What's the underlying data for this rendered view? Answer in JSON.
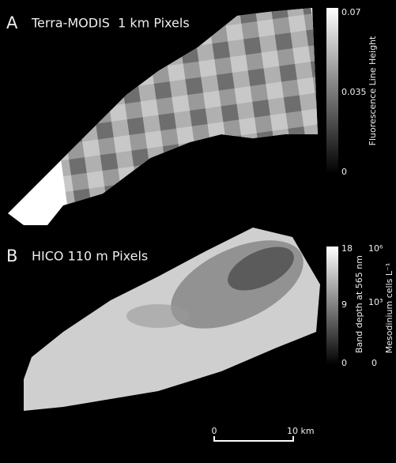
{
  "panels": [
    {
      "label": "A",
      "title": "Terra-MODIS  1 km Pixels",
      "colorbar": {
        "label": "Fluorescence Line Height",
        "ticks": [
          "0.07",
          "0.035",
          "0"
        ]
      }
    },
    {
      "label": "B",
      "title": "HICO 110 m Pixels",
      "colorbar": {
        "label": "Band depth at 565 nm",
        "ticks": [
          "18",
          "9",
          "0"
        ]
      },
      "colorbar2": {
        "label": "Mesodinium cells L⁻¹",
        "ticks": [
          "10⁶",
          "10³",
          "0"
        ]
      }
    }
  ],
  "scale_bar": {
    "labels": [
      "0",
      "10 km"
    ]
  }
}
